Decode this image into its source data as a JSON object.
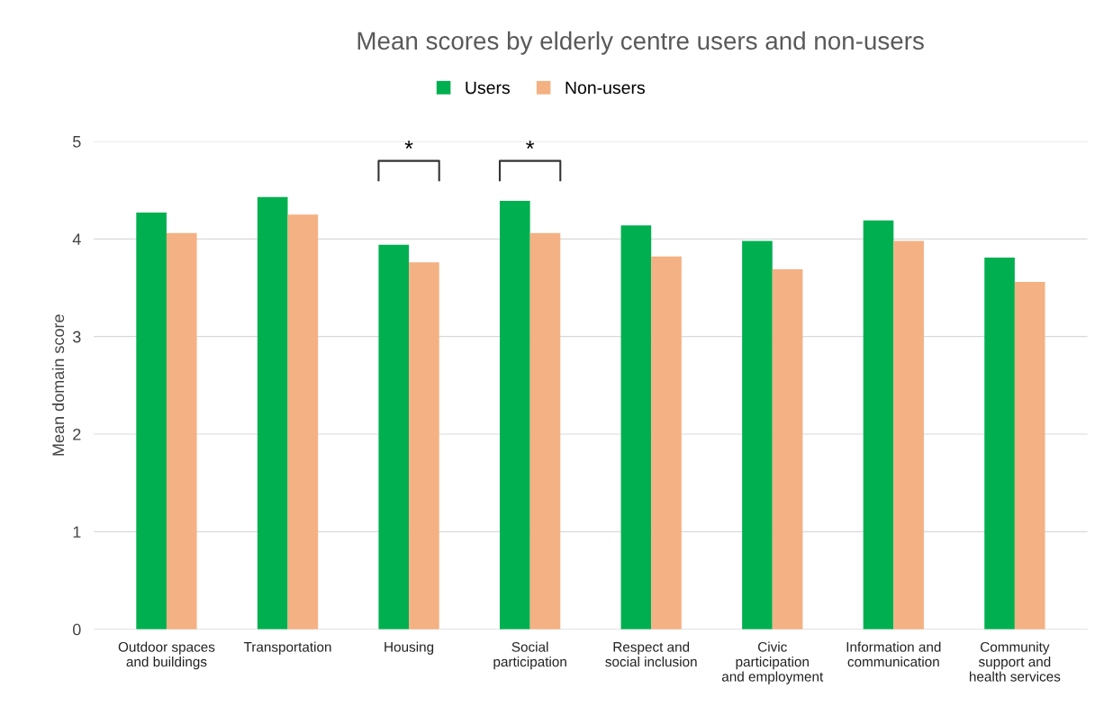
{
  "chart_data": {
    "type": "bar",
    "title": "Mean scores by elderly centre users and non-users",
    "ylabel": "Mean domain score",
    "categories": [
      "Outdoor spaces\nand buildings",
      "Transportation",
      "Housing",
      "Social\nparticipation",
      "Respect and\nsocial inclusion",
      "Civic\nparticipation\nand employment",
      "Information and\ncommunication",
      "Community\nsupport and\nhealth services"
    ],
    "series": [
      {
        "name": "Users",
        "color": "#00b050",
        "values": [
          4.27,
          4.43,
          3.94,
          4.39,
          4.14,
          3.98,
          4.19,
          3.81
        ]
      },
      {
        "name": "Non-users",
        "color": "#f4b183",
        "values": [
          4.06,
          4.25,
          3.76,
          4.06,
          3.82,
          3.69,
          3.98,
          3.56
        ]
      }
    ],
    "annotations": [
      "*",
      "*"
    ],
    "ylim": [
      0,
      5
    ],
    "yticks": [
      0,
      1,
      2,
      3,
      4,
      5
    ],
    "grid": "y",
    "legend": "top"
  }
}
